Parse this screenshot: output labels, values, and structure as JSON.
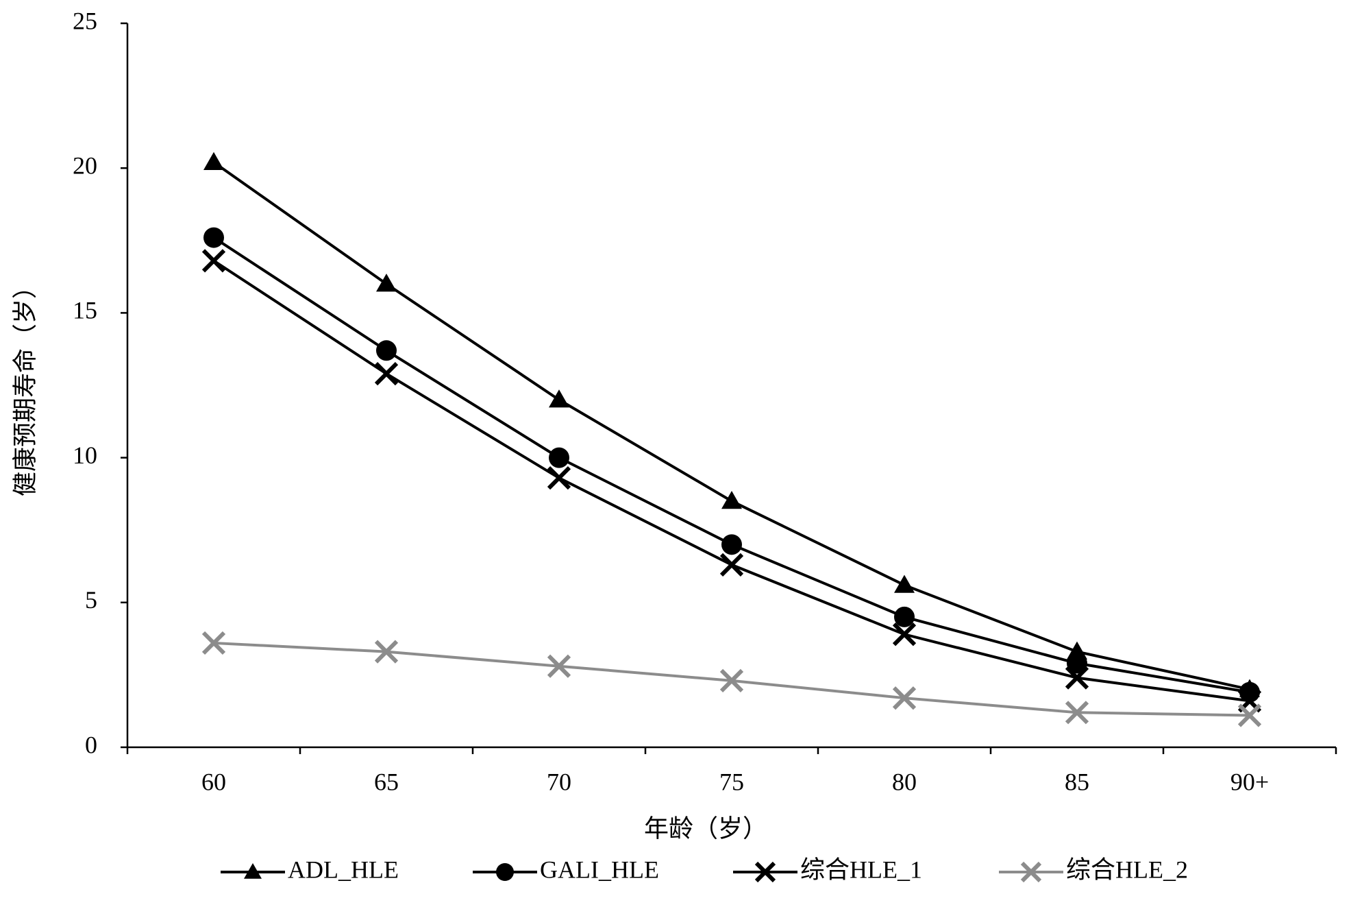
{
  "chart_data": {
    "type": "line",
    "x_label": "年龄（岁）",
    "y_label": "健康预期寿命（岁）",
    "categories": [
      "60",
      "65",
      "70",
      "75",
      "80",
      "85",
      "90+"
    ],
    "series": [
      {
        "name": "ADL_HLE",
        "color": "#000000",
        "marker": "triangle",
        "values": [
          20.2,
          16.0,
          12.0,
          8.5,
          5.6,
          3.3,
          2.0
        ]
      },
      {
        "name": "GALI_HLE",
        "color": "#000000",
        "marker": "circle",
        "values": [
          17.6,
          13.7,
          10.0,
          7.0,
          4.5,
          2.9,
          1.9
        ]
      },
      {
        "name": "综合HLE_1",
        "color": "#000000",
        "marker": "x",
        "values": [
          16.8,
          12.9,
          9.3,
          6.3,
          3.9,
          2.4,
          1.6
        ]
      },
      {
        "name": "综合HLE_2",
        "color": "#8c8c8c",
        "marker": "x",
        "values": [
          3.6,
          3.3,
          2.8,
          2.3,
          1.7,
          1.2,
          1.1
        ]
      }
    ],
    "ylim": [
      0,
      25
    ],
    "yticks": [
      0,
      5,
      10,
      15,
      20,
      25
    ],
    "grid": false,
    "legend": "bottom"
  }
}
